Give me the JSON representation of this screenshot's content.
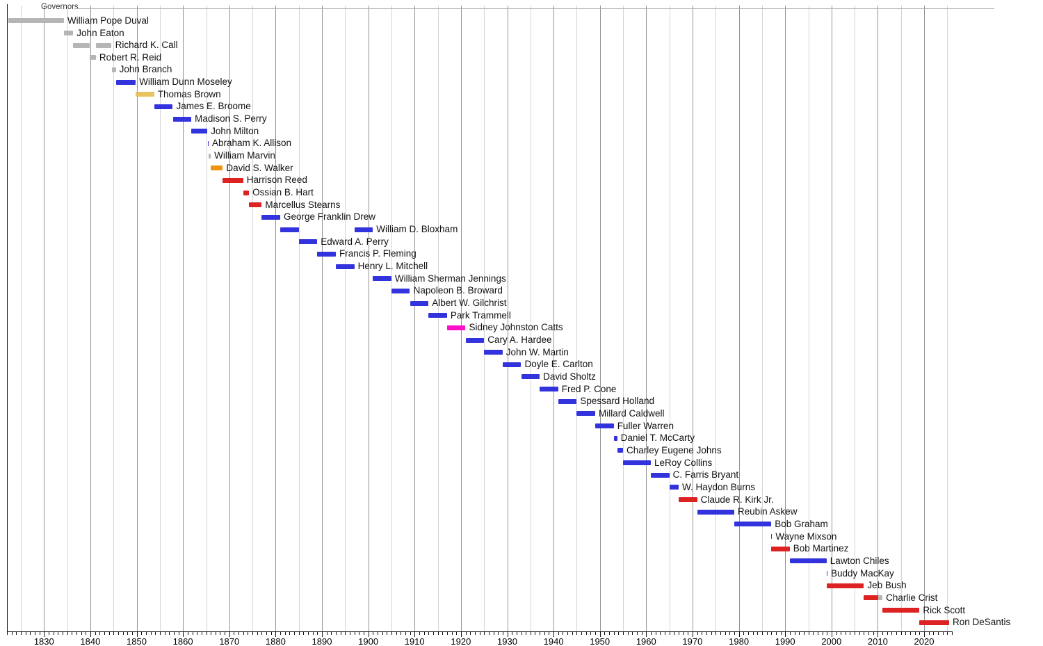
{
  "page": {
    "background": "#ffffff"
  },
  "chart_data": {
    "type": "timeline",
    "title": "Governors",
    "xlabel": "",
    "xlim": [
      1822,
      2026
    ],
    "x_major_ticks": [
      1830,
      1840,
      1850,
      1860,
      1870,
      1880,
      1890,
      1900,
      1910,
      1920,
      1930,
      1940,
      1950,
      1960,
      1970,
      1980,
      1990,
      2000,
      2010,
      2020
    ],
    "x_minor_tick_step": 1,
    "gridlines": {
      "grid_on": true,
      "start": 1825,
      "end": 2025,
      "step": 5
    },
    "palette": {
      "gray": "#b5b5b5",
      "blue": "#3333dd",
      "red": "#dd2222",
      "yellow": "#e9c35f",
      "orange": "#f0940f",
      "magenta": "#fb10c8"
    },
    "series": [
      {
        "name": "William Pope Duval",
        "segments": [
          {
            "start": 1822.3,
            "end": 1834.3,
            "color": "gray"
          }
        ]
      },
      {
        "name": "John Eaton",
        "segments": [
          {
            "start": 1834.3,
            "end": 1836.3,
            "color": "gray"
          }
        ]
      },
      {
        "name": "Richard K. Call",
        "segments": [
          {
            "start": 1836.3,
            "end": 1839.9,
            "color": "gray"
          },
          {
            "start": 1841.2,
            "end": 1844.6,
            "color": "gray"
          }
        ]
      },
      {
        "name": "Robert R. Reid",
        "segments": [
          {
            "start": 1839.9,
            "end": 1841.2,
            "color": "gray"
          }
        ]
      },
      {
        "name": "John Branch",
        "segments": [
          {
            "start": 1844.6,
            "end": 1845.5,
            "color": "gray"
          }
        ]
      },
      {
        "name": "William Dunn Moseley",
        "segments": [
          {
            "start": 1845.5,
            "end": 1849.8,
            "color": "blue"
          }
        ]
      },
      {
        "name": "Thomas Brown",
        "segments": [
          {
            "start": 1849.8,
            "end": 1853.8,
            "color": "yellow"
          }
        ]
      },
      {
        "name": "James E. Broome",
        "segments": [
          {
            "start": 1853.8,
            "end": 1857.8,
            "color": "blue"
          }
        ]
      },
      {
        "name": "Madison S. Perry",
        "segments": [
          {
            "start": 1857.8,
            "end": 1861.8,
            "color": "blue"
          }
        ]
      },
      {
        "name": "John Milton",
        "segments": [
          {
            "start": 1861.8,
            "end": 1865.25,
            "color": "blue"
          }
        ]
      },
      {
        "name": "Abraham K. Allison",
        "segments": [
          {
            "start": 1865.3,
            "end": 1865.5,
            "color": "blue"
          }
        ]
      },
      {
        "name": "William Marvin",
        "segments": [
          {
            "start": 1865.55,
            "end": 1866.0,
            "color": "gray"
          }
        ]
      },
      {
        "name": "David S. Walker",
        "segments": [
          {
            "start": 1866.0,
            "end": 1868.6,
            "color": "orange"
          }
        ]
      },
      {
        "name": "Harrison Reed",
        "segments": [
          {
            "start": 1868.6,
            "end": 1873.0,
            "color": "red"
          }
        ]
      },
      {
        "name": "Ossian B. Hart",
        "segments": [
          {
            "start": 1873.0,
            "end": 1874.25,
            "color": "red"
          }
        ]
      },
      {
        "name": "Marcellus Stearns",
        "segments": [
          {
            "start": 1874.25,
            "end": 1877.0,
            "color": "red"
          }
        ]
      },
      {
        "name": "George Franklin Drew",
        "segments": [
          {
            "start": 1877.0,
            "end": 1881.0,
            "color": "blue"
          }
        ]
      },
      {
        "name": "William D. Bloxham",
        "segments": [
          {
            "start": 1881.0,
            "end": 1885.0,
            "color": "blue"
          },
          {
            "start": 1897.0,
            "end": 1901.0,
            "color": "blue"
          }
        ]
      },
      {
        "name": "Edward A. Perry",
        "segments": [
          {
            "start": 1885.0,
            "end": 1889.0,
            "color": "blue"
          }
        ]
      },
      {
        "name": "Francis P. Fleming",
        "segments": [
          {
            "start": 1889.0,
            "end": 1893.0,
            "color": "blue"
          }
        ]
      },
      {
        "name": "Henry L. Mitchell",
        "segments": [
          {
            "start": 1893.0,
            "end": 1897.0,
            "color": "blue"
          }
        ]
      },
      {
        "name": "William Sherman Jennings",
        "segments": [
          {
            "start": 1901.0,
            "end": 1905.0,
            "color": "blue"
          }
        ]
      },
      {
        "name": "Napoleon B. Broward",
        "segments": [
          {
            "start": 1905.0,
            "end": 1909.0,
            "color": "blue"
          }
        ]
      },
      {
        "name": "Albert W. Gilchrist",
        "segments": [
          {
            "start": 1909.0,
            "end": 1913.0,
            "color": "blue"
          }
        ]
      },
      {
        "name": "Park Trammell",
        "segments": [
          {
            "start": 1913.0,
            "end": 1917.0,
            "color": "blue"
          }
        ]
      },
      {
        "name": "Sidney Johnston Catts",
        "segments": [
          {
            "start": 1917.0,
            "end": 1921.0,
            "color": "magenta"
          }
        ]
      },
      {
        "name": "Cary A. Hardee",
        "segments": [
          {
            "start": 1921.0,
            "end": 1925.0,
            "color": "blue"
          }
        ]
      },
      {
        "name": "John W. Martin",
        "segments": [
          {
            "start": 1925.0,
            "end": 1929.0,
            "color": "blue"
          }
        ]
      },
      {
        "name": "Doyle E. Carlton",
        "segments": [
          {
            "start": 1929.0,
            "end": 1933.0,
            "color": "blue"
          }
        ]
      },
      {
        "name": "David Sholtz",
        "segments": [
          {
            "start": 1933.0,
            "end": 1937.0,
            "color": "blue"
          }
        ]
      },
      {
        "name": "Fred P. Cone",
        "segments": [
          {
            "start": 1937.0,
            "end": 1941.0,
            "color": "blue"
          }
        ]
      },
      {
        "name": "Spessard Holland",
        "segments": [
          {
            "start": 1941.0,
            "end": 1945.0,
            "color": "blue"
          }
        ]
      },
      {
        "name": "Millard Caldwell",
        "segments": [
          {
            "start": 1945.0,
            "end": 1949.0,
            "color": "blue"
          }
        ]
      },
      {
        "name": "Fuller Warren",
        "segments": [
          {
            "start": 1949.0,
            "end": 1953.0,
            "color": "blue"
          }
        ]
      },
      {
        "name": "Daniel T. McCarty",
        "segments": [
          {
            "start": 1953.0,
            "end": 1953.75,
            "color": "blue"
          }
        ]
      },
      {
        "name": "Charley Eugene Johns",
        "segments": [
          {
            "start": 1953.75,
            "end": 1955.0,
            "color": "blue"
          }
        ]
      },
      {
        "name": "LeRoy Collins",
        "segments": [
          {
            "start": 1955.0,
            "end": 1961.0,
            "color": "blue"
          }
        ]
      },
      {
        "name": "C. Farris Bryant",
        "segments": [
          {
            "start": 1961.0,
            "end": 1965.0,
            "color": "blue"
          }
        ]
      },
      {
        "name": "W. Haydon Burns",
        "segments": [
          {
            "start": 1965.0,
            "end": 1967.0,
            "color": "blue"
          }
        ]
      },
      {
        "name": "Claude R. Kirk Jr.",
        "segments": [
          {
            "start": 1967.0,
            "end": 1971.0,
            "color": "red"
          }
        ]
      },
      {
        "name": "Reubin Askew",
        "segments": [
          {
            "start": 1971.0,
            "end": 1979.0,
            "color": "blue"
          }
        ]
      },
      {
        "name": "Bob Graham",
        "segments": [
          {
            "start": 1979.0,
            "end": 1987.0,
            "color": "blue"
          }
        ]
      },
      {
        "name": "Wayne Mixson",
        "segments": [
          {
            "start": 1986.95,
            "end": 1987.15,
            "color": "blue"
          }
        ]
      },
      {
        "name": "Bob Martinez",
        "segments": [
          {
            "start": 1987.0,
            "end": 1991.0,
            "color": "red"
          }
        ]
      },
      {
        "name": "Lawton Chiles",
        "segments": [
          {
            "start": 1991.0,
            "end": 1998.95,
            "color": "blue"
          }
        ]
      },
      {
        "name": "Buddy MacKay",
        "segments": [
          {
            "start": 1998.9,
            "end": 1999.1,
            "color": "blue"
          }
        ]
      },
      {
        "name": "Jeb Bush",
        "segments": [
          {
            "start": 1999.0,
            "end": 2007.0,
            "color": "red"
          }
        ]
      },
      {
        "name": "Charlie Crist",
        "segments": [
          {
            "start": 2007.0,
            "end": 2010.1,
            "color": "red"
          },
          {
            "start": 2010.1,
            "end": 2011.0,
            "color": "gray"
          }
        ]
      },
      {
        "name": "Rick Scott",
        "segments": [
          {
            "start": 2011.0,
            "end": 2019.0,
            "color": "red"
          }
        ]
      },
      {
        "name": "Ron DeSantis",
        "segments": [
          {
            "start": 2019.0,
            "end": 2025.4,
            "color": "red"
          }
        ]
      }
    ]
  }
}
